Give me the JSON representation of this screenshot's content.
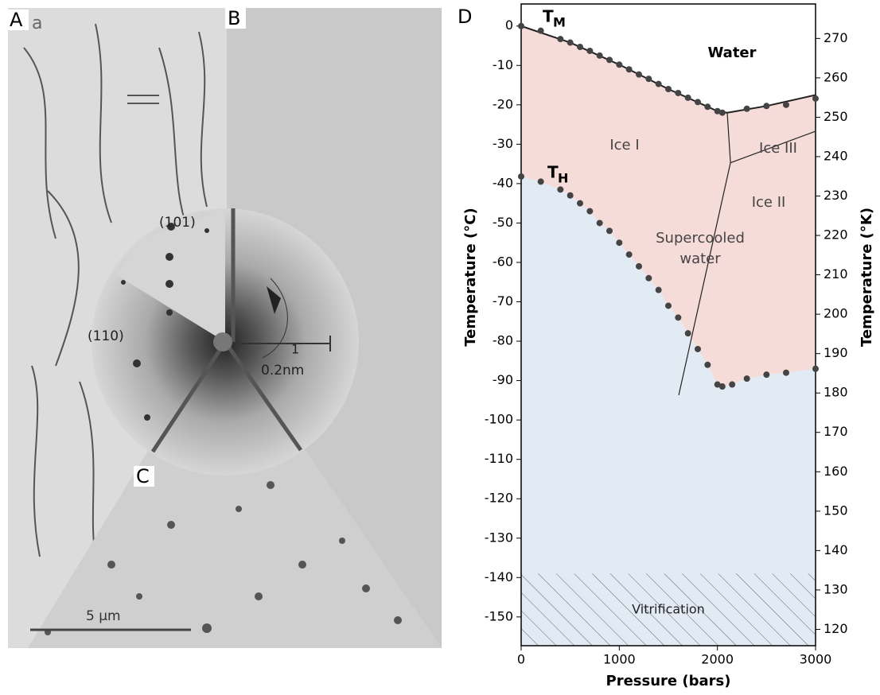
{
  "panels": {
    "a": {
      "label": "A",
      "sublabel": "a"
    },
    "b": {
      "label": "B"
    },
    "c": {
      "label": "C",
      "scale": "5 µm"
    },
    "diffraction": {
      "ring1": "(101)",
      "ring2": "(110)",
      "scale_top": "1",
      "scale_bottom": "0.2nm"
    }
  },
  "chart_data": {
    "type": "scatter",
    "panel_label": "D",
    "xlabel": "Pressure (bars)",
    "ylabel": "Temperature (°C)",
    "y2label": "Temperature (°K)",
    "xlim": [
      0,
      3000
    ],
    "xticks": [
      0,
      1000,
      2000,
      3000
    ],
    "ylim": [
      -157.3,
      5.6
    ],
    "yticks": [
      0,
      -10,
      -20,
      -30,
      -40,
      -50,
      -60,
      -70,
      -80,
      -90,
      -100,
      -110,
      -120,
      -130,
      -140,
      -150
    ],
    "y2lim": [
      115.85,
      278.75
    ],
    "y2ticks": [
      120,
      130,
      140,
      150,
      160,
      170,
      180,
      190,
      200,
      210,
      220,
      230,
      240,
      250,
      260,
      270
    ],
    "tm_label": {
      "base": "T",
      "sub": "M"
    },
    "th_label": {
      "base": "T",
      "sub": "H"
    },
    "region_labels": {
      "water": "Water",
      "ice1": "Ice I",
      "ice3": "Ice III",
      "ice2": "Ice II",
      "super1": "Supercooled",
      "super2": "water",
      "vitri": "Vitrification"
    },
    "vitrification_top": -139,
    "colors": {
      "ice": "#f5dcd8",
      "supercooled": "#e2eaf4",
      "points": "#444444",
      "lines": "#222222"
    },
    "series": [
      {
        "x": [
          0,
          200,
          400,
          500,
          600,
          700,
          800,
          900,
          1000,
          1100,
          1200,
          1300,
          1400,
          1500,
          1600,
          1700,
          1800,
          1900,
          2000,
          2050,
          2300,
          2500,
          2700,
          3000
        ],
        "values": [
          0,
          -1.2,
          -3.3,
          -4.2,
          -5.3,
          -6.3,
          -7.5,
          -8.6,
          -9.8,
          -11,
          -12.3,
          -13.4,
          -14.7,
          -16,
          -17,
          -18.2,
          -19.3,
          -20.5,
          -21.6,
          -22,
          -21,
          -20.3,
          -20,
          -18.4
        ]
      },
      {
        "x": [
          0,
          200,
          400,
          500,
          600,
          700,
          800,
          900,
          1000,
          1100,
          1200,
          1300,
          1400,
          1500,
          1600,
          1700,
          1800,
          1900,
          2000,
          2050,
          2150,
          2300,
          2500,
          2700,
          3000
        ],
        "values": [
          -38.2,
          -39.5,
          -41.5,
          -43,
          -45,
          -47,
          -50,
          -52,
          -55,
          -58,
          -61,
          -64,
          -67,
          -71,
          -74,
          -78,
          -82,
          -86,
          -91,
          -91.5,
          -91,
          -89.5,
          -88.5,
          -88,
          -87
        ]
      }
    ],
    "lines": [
      {
        "x": [
          0,
          500,
          1000,
          1500,
          2000,
          2100
        ],
        "values": [
          0,
          -4.2,
          -9.8,
          -16,
          -21.6,
          -22
        ]
      },
      {
        "x": [
          2100,
          2500,
          3000
        ],
        "values": [
          -22,
          -20.3,
          -17.5
        ]
      },
      {
        "x": [
          2100,
          2133
        ],
        "values": [
          -22,
          -34.7
        ]
      },
      {
        "x": [
          2133,
          3000
        ],
        "values": [
          -34.7,
          -26.7
        ]
      },
      {
        "x": [
          2133,
          1606
        ],
        "values": [
          -34.7,
          -93.7
        ]
      }
    ]
  }
}
